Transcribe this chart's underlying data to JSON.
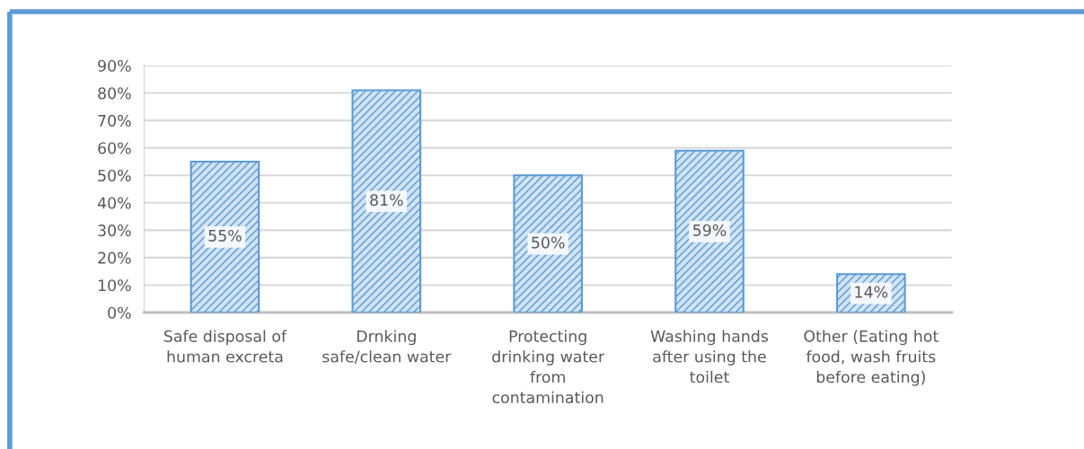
{
  "chart_data": {
    "type": "bar",
    "categories": [
      "Safe disposal of\nhuman excreta",
      "Drnking\nsafe/clean water",
      "Protecting\ndrinking water\nfrom\ncontamination",
      "Washing hands\nafter using the\ntoilet",
      "Other (Eating hot\nfood, wash fruits\nbefore eating)"
    ],
    "values": [
      55,
      81,
      50,
      59,
      14
    ],
    "value_labels": [
      "55%",
      "81%",
      "50%",
      "59%",
      "14%"
    ],
    "color": "#5b9bd5",
    "ylim": [
      0,
      90
    ],
    "yticks": [
      {
        "value": 0,
        "label": "0%"
      },
      {
        "value": 10,
        "label": "10%"
      },
      {
        "value": 20,
        "label": "20%"
      },
      {
        "value": 30,
        "label": "30%"
      },
      {
        "value": 40,
        "label": "40%"
      },
      {
        "value": 50,
        "label": "50%"
      },
      {
        "value": 60,
        "label": "60%"
      },
      {
        "value": 70,
        "label": "70%"
      },
      {
        "value": 80,
        "label": "80%"
      },
      {
        "value": 90,
        "label": "90%"
      }
    ],
    "grid": "y"
  }
}
